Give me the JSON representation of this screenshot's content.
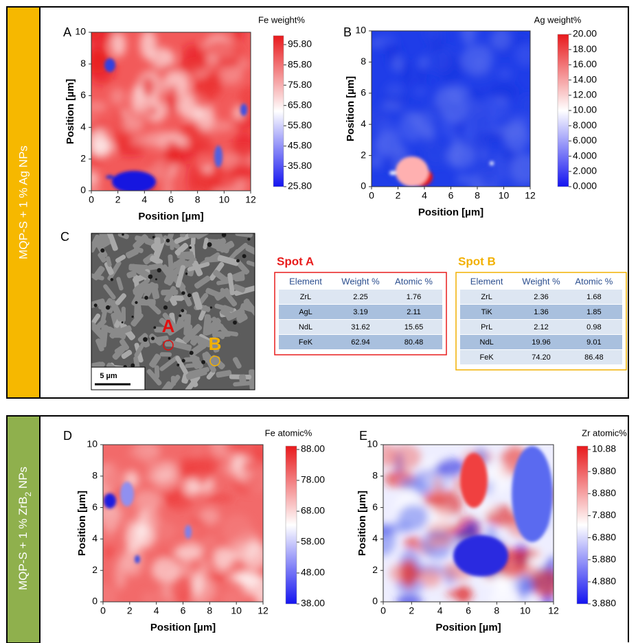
{
  "section1": {
    "side_label": "MQP-S + 1 % Ag NPs",
    "map_a": {
      "letter": "A",
      "title": "Fe weight%",
      "x_label": "Position [µm]",
      "y_label": "Position [µm]",
      "x_ticks": [
        0,
        2,
        4,
        6,
        8,
        10,
        12
      ],
      "y_ticks": [
        0,
        2,
        4,
        6,
        8,
        10
      ],
      "colorbar_ticks": [
        "95.80",
        "85.80",
        "75.80",
        "65.80",
        "55.80",
        "45.80",
        "35.80",
        "25.80"
      ]
    },
    "map_b": {
      "letter": "B",
      "title": "Ag weight%",
      "x_label": "Position [µm]",
      "y_label": "Position [µm]",
      "x_ticks": [
        0,
        2,
        4,
        6,
        8,
        10,
        12
      ],
      "y_ticks": [
        0,
        2,
        4,
        6,
        8,
        10
      ],
      "colorbar_ticks": [
        "20.00",
        "18.00",
        "16.00",
        "14.00",
        "12.00",
        "10.00",
        "8.000",
        "6.000",
        "4.000",
        "2.000",
        "0.000"
      ]
    },
    "panel_c": {
      "letter": "C",
      "marker_a": "A",
      "marker_b": "B",
      "scale_bar": "5 µm",
      "spot_a": {
        "title": "Spot A",
        "header": [
          "Element",
          "Weight %",
          "Atomic %"
        ],
        "rows": [
          [
            "ZrL",
            "2.25",
            "1.76"
          ],
          [
            "AgL",
            "3.19",
            "2.11"
          ],
          [
            "NdL",
            "31.62",
            "15.65"
          ],
          [
            "FeK",
            "62.94",
            "80.48"
          ]
        ]
      },
      "spot_b": {
        "title": "Spot B",
        "header": [
          "Element",
          "Weight %",
          "Atomic %"
        ],
        "rows": [
          [
            "ZrL",
            "2.36",
            "1.68"
          ],
          [
            "TiK",
            "1.36",
            "1.85"
          ],
          [
            "PrL",
            "2.12",
            "0.98"
          ],
          [
            "NdL",
            "19.96",
            "9.01"
          ],
          [
            "FeK",
            "74.20",
            "86.48"
          ]
        ]
      }
    }
  },
  "section2": {
    "side_label": {
      "text": "MQP-S + 1 % ZrB",
      "subscript": "2",
      "suffix": " NPs"
    },
    "map_d": {
      "letter": "D",
      "title": "Fe atomic%",
      "x_label": "Position [µm]",
      "y_label": "Position [µm]",
      "x_ticks": [
        0,
        2,
        4,
        6,
        8,
        10,
        12
      ],
      "y_ticks": [
        0,
        2,
        4,
        6,
        8,
        10
      ],
      "colorbar_ticks": [
        "88.00",
        "78.00",
        "68.00",
        "58.00",
        "48.00",
        "38.00"
      ]
    },
    "map_e": {
      "letter": "E",
      "title": "Zr atomic%",
      "x_label": "Position [µm]",
      "y_label": "Position [µm]",
      "x_ticks": [
        0,
        2,
        4,
        6,
        8,
        10,
        12
      ],
      "y_ticks": [
        0,
        2,
        4,
        6,
        8,
        10
      ],
      "colorbar_ticks": [
        "10.88",
        "9.880",
        "8.880",
        "7.880",
        "6.880",
        "5.880",
        "4.880",
        "3.880"
      ]
    }
  }
}
